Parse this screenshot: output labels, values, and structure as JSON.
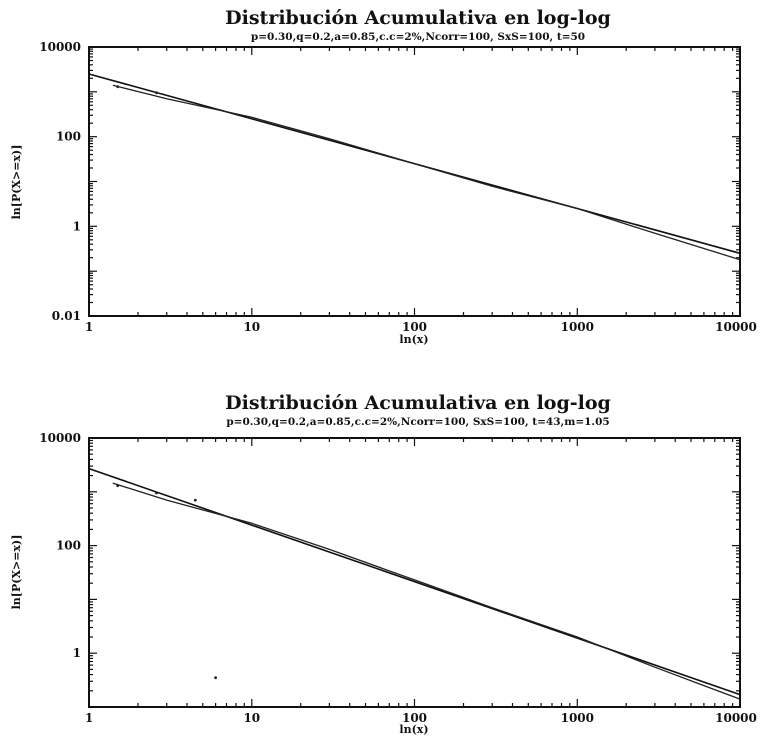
{
  "chart_data": [
    {
      "type": "line",
      "title": "Distribución Acumulativa en log-log",
      "subtitle": "p=0.30,q=0.2,a=0.85,c.c=2%,Ncorr=100, SxS=100, t=50",
      "xlabel": "ln(x)",
      "ylabel": "ln[P(X>=x)]",
      "x_scale": "log",
      "y_scale": "log",
      "xlim": [
        1,
        10000
      ],
      "ylim": [
        0.01,
        10000
      ],
      "x_ticks": [
        "1",
        "10",
        "100",
        "1000",
        "10000"
      ],
      "y_ticks": [
        "0.01",
        "1",
        "100",
        "10000"
      ],
      "grid": false,
      "series": [
        {
          "x": [
            1,
            10000
          ],
          "y": [
            2500,
            0.25
          ]
        },
        {
          "x": [
            1.4,
            3,
            10,
            30,
            100,
            300,
            1000,
            3000,
            6000,
            10000
          ],
          "y": [
            1400,
            700,
            270,
            90,
            25,
            7.8,
            2.5,
            0.7,
            0.32,
            0.18
          ]
        }
      ],
      "scatter": {
        "x": [
          1.5,
          2.6
        ],
        "y": [
          1300,
          950
        ]
      }
    },
    {
      "type": "line",
      "title": "Distribución Acumulativa en log-log",
      "subtitle": "p=0.30,q=0.2,a=0.85,c.c=2%,Ncorr=100, SxS=100, t=43,m=1.05",
      "xlabel": "ln(x)",
      "ylabel": "ln[P(X>=x)]",
      "x_scale": "log",
      "y_scale": "log",
      "xlim": [
        1,
        10000
      ],
      "ylim": [
        0.1,
        10000
      ],
      "x_ticks": [
        "1",
        "10",
        "100",
        "1000",
        "10000"
      ],
      "y_ticks": [
        "1",
        "100",
        "10000"
      ],
      "grid": false,
      "series": [
        {
          "x": [
            1,
            10000
          ],
          "y": [
            2700,
            0.17
          ]
        },
        {
          "x": [
            1.4,
            3,
            10,
            30,
            100,
            300,
            1000,
            3000,
            6000,
            10000
          ],
          "y": [
            1450,
            700,
            260,
            85,
            23,
            7,
            2,
            0.55,
            0.25,
            0.14
          ]
        }
      ],
      "scatter": {
        "x": [
          1.5,
          2.6,
          4.5,
          6
        ],
        "y": [
          1300,
          950,
          700,
          0.35
        ]
      }
    }
  ]
}
